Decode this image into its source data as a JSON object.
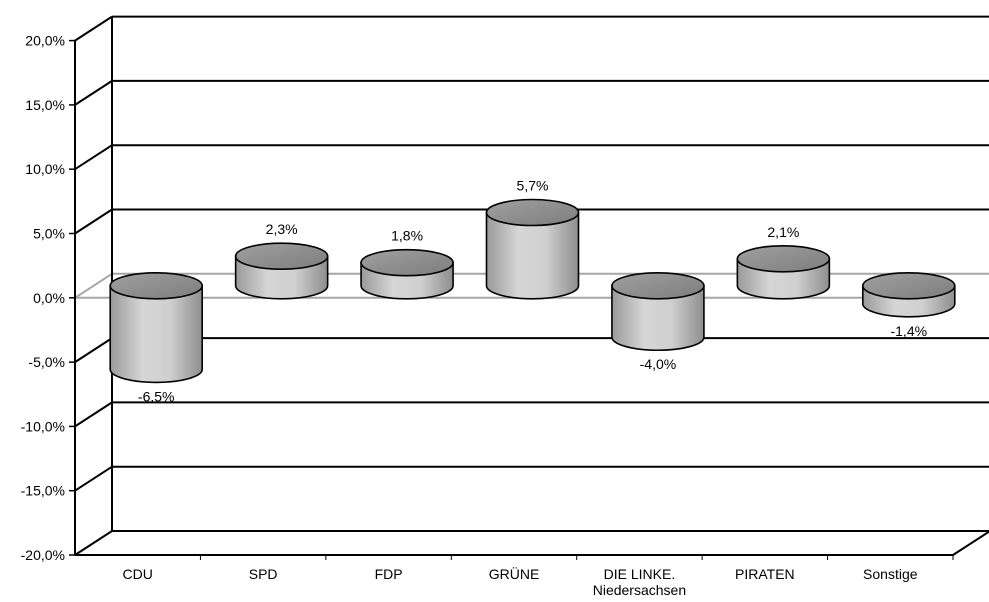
{
  "chart_data": {
    "type": "bar",
    "style": "3d-cylinder",
    "categories": [
      "CDU",
      "SPD",
      "FDP",
      "GRÜNE",
      "DIE LINKE. Niedersachsen",
      "PIRATEN",
      "Sonstige"
    ],
    "category_label_lines": [
      [
        "CDU"
      ],
      [
        "SPD"
      ],
      [
        "FDP"
      ],
      [
        "GRÜNE"
      ],
      [
        "DIE LINKE.",
        "Niedersachsen"
      ],
      [
        "PIRATEN"
      ],
      [
        "Sonstige"
      ]
    ],
    "values": [
      -6.5,
      2.3,
      1.8,
      5.7,
      -4.0,
      2.1,
      -1.4
    ],
    "data_labels": [
      "-6,5%",
      "2,3%",
      "1,8%",
      "5,7%",
      "-4,0%",
      "2,1%",
      "-1,4%"
    ],
    "ylim": [
      -20,
      20
    ],
    "yticks": [
      20,
      15,
      10,
      5,
      0,
      -5,
      -10,
      -15,
      -20
    ],
    "ytick_labels": [
      "20,0%",
      "15,0%",
      "10,0%",
      "5,0%",
      "0,0%",
      "-5,0%",
      "-10,0%",
      "-15,0%",
      "-20,0%"
    ],
    "grid": true,
    "legend": "none",
    "title": "",
    "xlabel": "",
    "ylabel": "",
    "colors": {
      "bar_side": "#bdbdbd",
      "bar_top": "#8c8c8c",
      "grid": "#000000",
      "zero_line": "#a6a6a6"
    }
  }
}
